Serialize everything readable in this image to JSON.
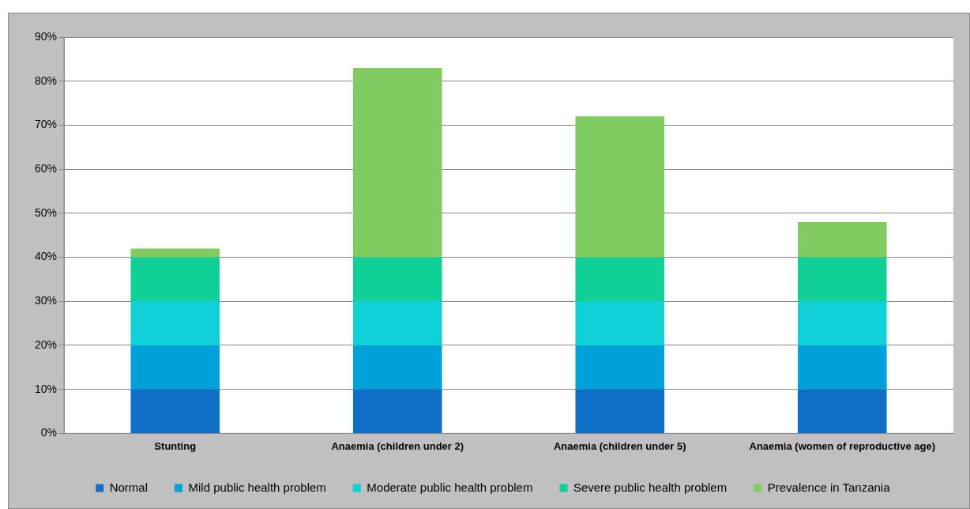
{
  "chart_data": {
    "type": "bar",
    "stacked": true,
    "categories": [
      "Stunting",
      "Anaemia (children under 2)",
      "Anaemia (children under 5)",
      "Anaemia (women of reproductive age)"
    ],
    "series": [
      {
        "name": "Normal",
        "color": "#1070c8",
        "values": [
          10,
          10,
          10,
          10
        ]
      },
      {
        "name": "Mild public health problem",
        "color": "#00a0d8",
        "values": [
          10,
          10,
          10,
          10
        ]
      },
      {
        "name": "Moderate public health problem",
        "color": "#10d0d8",
        "values": [
          10,
          10,
          10,
          10
        ]
      },
      {
        "name": "Severe public health problem",
        "color": "#10d098",
        "values": [
          10,
          10,
          10,
          10
        ]
      },
      {
        "name": "Prevalence in Tanzania",
        "color": "#80cc60",
        "values": [
          2,
          43,
          32,
          8
        ]
      }
    ],
    "ylim": [
      0,
      90
    ],
    "yticks": [
      {
        "value": 0,
        "label": "0%"
      },
      {
        "value": 10,
        "label": "10%"
      },
      {
        "value": 20,
        "label": "20%"
      },
      {
        "value": 30,
        "label": "30%"
      },
      {
        "value": 40,
        "label": "40%"
      },
      {
        "value": 50,
        "label": "50%"
      },
      {
        "value": 60,
        "label": "60%"
      },
      {
        "value": 70,
        "label": "70%"
      },
      {
        "value": 80,
        "label": "80%"
      },
      {
        "value": 90,
        "label": "90%"
      }
    ],
    "grid": "y",
    "legend": "bottom"
  }
}
